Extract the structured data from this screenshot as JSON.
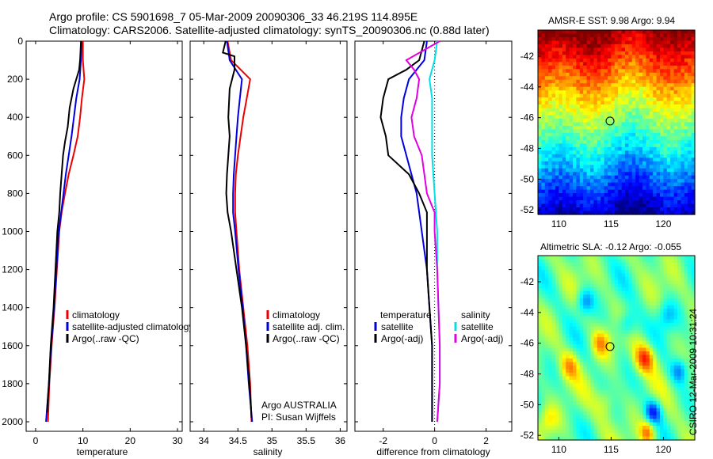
{
  "figure": {
    "title_line1": "Argo profile: CS 5901698_7 05-Mar-2009 20090306_33 46.219S 114.895E",
    "title_line2": "Climatology: CARS2006. Satellite-adjusted climatology: synTS_20090306.nc (0.88d later)",
    "stamp": "CSIRO 12-Mar-2009 10:31:24",
    "annotation_line1": "Argo AUSTRALIA",
    "annotation_line2": "PI: Susan Wijffels"
  },
  "colors": {
    "climatology": "#ee0000",
    "satellite": "#0000dd",
    "argo": "#000000",
    "sal_satellite": "#00e0e8",
    "sal_argo": "#e000e0"
  },
  "chart_data": [
    {
      "type": "line",
      "id": "temperature",
      "xlabel": "temperature",
      "ylabel": "",
      "xlim": [
        -2,
        31
      ],
      "ylim": [
        2050,
        0
      ],
      "xticks": [
        0,
        10,
        20,
        30
      ],
      "yticks": [
        0,
        200,
        400,
        600,
        800,
        1000,
        1200,
        1400,
        1600,
        1800,
        2000
      ],
      "legend": [
        "climatology",
        "satellite-adjusted climatology",
        "Argo(..raw -QC)"
      ],
      "series": [
        {
          "name": "climatology",
          "color": "#ee0000",
          "points": [
            [
              10.0,
              0
            ],
            [
              10.0,
              100
            ],
            [
              10.3,
              200
            ],
            [
              9.8,
              300
            ],
            [
              9.4,
              400
            ],
            [
              8.9,
              500
            ],
            [
              8.0,
              600
            ],
            [
              7.0,
              700
            ],
            [
              6.2,
              800
            ],
            [
              5.5,
              900
            ],
            [
              5.0,
              1000
            ],
            [
              4.5,
              1200
            ],
            [
              4.0,
              1400
            ],
            [
              3.4,
              1600
            ],
            [
              2.9,
              1800
            ],
            [
              2.6,
              2000
            ]
          ]
        },
        {
          "name": "satellite-adjusted climatology",
          "color": "#0000dd",
          "points": [
            [
              9.7,
              0
            ],
            [
              9.6,
              100
            ],
            [
              9.3,
              200
            ],
            [
              8.6,
              300
            ],
            [
              8.1,
              400
            ],
            [
              7.6,
              500
            ],
            [
              7.0,
              600
            ],
            [
              6.4,
              700
            ],
            [
              5.9,
              800
            ],
            [
              5.4,
              900
            ],
            [
              4.9,
              1000
            ],
            [
              4.4,
              1200
            ],
            [
              3.9,
              1400
            ],
            [
              3.3,
              1600
            ],
            [
              2.8,
              1800
            ],
            [
              2.2,
              2000
            ]
          ]
        },
        {
          "name": "Argo(..raw -QC)",
          "color": "#000000",
          "points": [
            [
              9.6,
              0
            ],
            [
              9.4,
              100
            ],
            [
              9.2,
              150
            ],
            [
              8.0,
              250
            ],
            [
              7.2,
              350
            ],
            [
              6.8,
              450
            ],
            [
              6.2,
              530
            ],
            [
              5.8,
              600
            ],
            [
              5.5,
              700
            ],
            [
              5.2,
              800
            ],
            [
              5.0,
              900
            ],
            [
              4.6,
              1000
            ],
            [
              4.2,
              1200
            ],
            [
              3.8,
              1400
            ],
            [
              3.2,
              1600
            ],
            [
              2.8,
              1800
            ],
            [
              2.4,
              1950
            ]
          ]
        }
      ]
    },
    {
      "type": "line",
      "id": "salinity",
      "xlabel": "salinity",
      "ylabel": "",
      "xlim": [
        33.8,
        36.1
      ],
      "ylim": [
        2050,
        0
      ],
      "xticks": [
        34,
        34.5,
        35,
        35.5,
        36
      ],
      "legend": [
        "climatology",
        "satellite adj. clim.",
        "Argo(..raw -QC)"
      ],
      "series": [
        {
          "name": "climatology",
          "color": "#ee0000",
          "points": [
            [
              34.35,
              0
            ],
            [
              34.4,
              100
            ],
            [
              34.68,
              200
            ],
            [
              34.63,
              300
            ],
            [
              34.58,
              400
            ],
            [
              34.54,
              500
            ],
            [
              34.5,
              600
            ],
            [
              34.47,
              700
            ],
            [
              34.46,
              800
            ],
            [
              34.46,
              900
            ],
            [
              34.48,
              1000
            ],
            [
              34.52,
              1200
            ],
            [
              34.58,
              1400
            ],
            [
              34.64,
              1600
            ],
            [
              34.68,
              1800
            ],
            [
              34.7,
              2000
            ]
          ]
        },
        {
          "name": "satellite adj. clim.",
          "color": "#0000dd",
          "points": [
            [
              34.34,
              0
            ],
            [
              34.38,
              100
            ],
            [
              34.56,
              200
            ],
            [
              34.53,
              300
            ],
            [
              34.5,
              400
            ],
            [
              34.48,
              500
            ],
            [
              34.46,
              600
            ],
            [
              34.44,
              700
            ],
            [
              34.43,
              800
            ],
            [
              34.43,
              900
            ],
            [
              34.46,
              1000
            ],
            [
              34.51,
              1200
            ],
            [
              34.57,
              1400
            ],
            [
              34.62,
              1600
            ],
            [
              34.66,
              1800
            ],
            [
              34.71,
              2000
            ]
          ]
        },
        {
          "name": "Argo(..raw -QC)",
          "color": "#000000",
          "points": [
            [
              34.32,
              0
            ],
            [
              34.28,
              60
            ],
            [
              34.45,
              80
            ],
            [
              34.45,
              150
            ],
            [
              34.38,
              250
            ],
            [
              34.36,
              400
            ],
            [
              34.38,
              500
            ],
            [
              34.36,
              600
            ],
            [
              34.34,
              700
            ],
            [
              34.33,
              800
            ],
            [
              34.35,
              900
            ],
            [
              34.4,
              1000
            ],
            [
              34.48,
              1200
            ],
            [
              34.56,
              1400
            ],
            [
              34.62,
              1600
            ],
            [
              34.67,
              1800
            ],
            [
              34.7,
              1980
            ]
          ]
        }
      ]
    },
    {
      "type": "line",
      "id": "difference",
      "xlabel": "difference from climatology",
      "ylabel": "",
      "xlim": [
        -3.1,
        3.0
      ],
      "ylim": [
        2050,
        0
      ],
      "xticks": [
        -2,
        0,
        2
      ],
      "legend_temperature": [
        "temperature",
        "satellite",
        "Argo(-adj)"
      ],
      "legend_salinity": [
        "salinity",
        "satellite",
        "Argo(-adj)"
      ],
      "series": [
        {
          "name": "temperature satellite",
          "color": "#0000dd",
          "points": [
            [
              -0.3,
              0
            ],
            [
              -0.4,
              100
            ],
            [
              -1.0,
              200
            ],
            [
              -1.2,
              300
            ],
            [
              -1.3,
              400
            ],
            [
              -1.3,
              500
            ],
            [
              -1.1,
              600
            ],
            [
              -0.7,
              800
            ],
            [
              -0.5,
              1000
            ],
            [
              -0.3,
              1200
            ],
            [
              -0.2,
              1400
            ],
            [
              -0.1,
              1600
            ],
            [
              -0.1,
              1800
            ],
            [
              -0.1,
              2000
            ]
          ]
        },
        {
          "name": "temperature Argo(-adj)",
          "color": "#000000",
          "points": [
            [
              -0.4,
              0
            ],
            [
              -0.6,
              100
            ],
            [
              -1.1,
              150
            ],
            [
              -1.8,
              200
            ],
            [
              -2.0,
              300
            ],
            [
              -2.1,
              400
            ],
            [
              -1.9,
              500
            ],
            [
              -1.8,
              600
            ],
            [
              -1.0,
              700
            ],
            [
              -0.6,
              800
            ],
            [
              -0.3,
              900
            ],
            [
              -0.3,
              1000
            ],
            [
              -0.3,
              1200
            ],
            [
              -0.2,
              1400
            ],
            [
              -0.1,
              1600
            ],
            [
              -0.1,
              1800
            ],
            [
              -0.1,
              2000
            ]
          ]
        },
        {
          "name": "salinity satellite",
          "color": "#00e0e8",
          "points": [
            [
              0.1,
              0
            ],
            [
              0.0,
              100
            ],
            [
              -0.2,
              200
            ],
            [
              -0.1,
              300
            ],
            [
              -0.1,
              400
            ],
            [
              -0.1,
              500
            ],
            [
              -0.1,
              600
            ],
            [
              0.0,
              800
            ],
            [
              0.1,
              1000
            ],
            [
              0.1,
              1200
            ],
            [
              0.15,
              1400
            ],
            [
              0.2,
              1600
            ],
            [
              0.2,
              1800
            ],
            [
              0.1,
              2000
            ]
          ]
        },
        {
          "name": "salinity Argo(-adj)",
          "color": "#e000e0",
          "points": [
            [
              0.2,
              0
            ],
            [
              -1.1,
              100
            ],
            [
              -0.8,
              150
            ],
            [
              -0.6,
              200
            ],
            [
              -0.7,
              300
            ],
            [
              -0.9,
              400
            ],
            [
              -0.8,
              500
            ],
            [
              -0.5,
              600
            ],
            [
              -0.3,
              800
            ],
            [
              0.0,
              900
            ],
            [
              0.0,
              1000
            ],
            [
              0.1,
              1200
            ],
            [
              0.15,
              1400
            ],
            [
              0.2,
              1600
            ],
            [
              0.2,
              1800
            ],
            [
              0.1,
              2000
            ]
          ]
        }
      ]
    },
    {
      "type": "heatmap",
      "id": "amsre_sst",
      "title": "AMSR-E SST: 9.98 Argo: 9.94",
      "xlim": [
        108,
        123
      ],
      "ylim": [
        -52.3,
        -40.3
      ],
      "xticks": [
        110,
        115,
        120
      ],
      "yticks": [
        -42,
        -44,
        -46,
        -48,
        -50,
        -52
      ],
      "marker": {
        "lon": 114.895,
        "lat": -46.219
      },
      "colormap": "jet"
    },
    {
      "type": "heatmap",
      "id": "altimetric_sla",
      "title": "Altimetric SLA: -0.12 Argo: -0.055",
      "xlim": [
        108,
        123
      ],
      "ylim": [
        -52.3,
        -40.3
      ],
      "xticks": [
        110,
        115,
        120
      ],
      "yticks": [
        -42,
        -44,
        -46,
        -48,
        -50,
        -52
      ],
      "marker": {
        "lon": 114.895,
        "lat": -46.219
      },
      "colormap": "jet"
    }
  ]
}
